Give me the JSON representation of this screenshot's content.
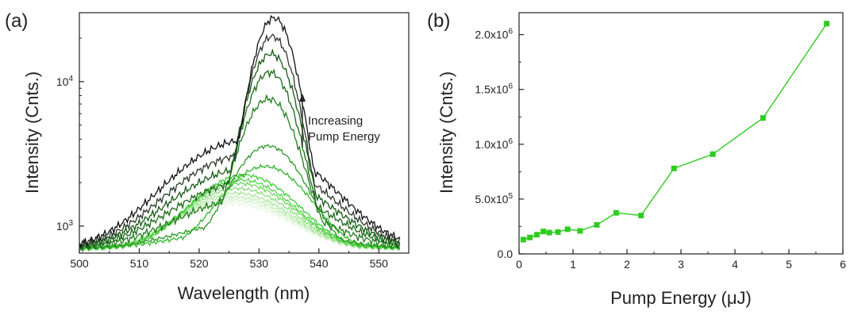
{
  "chart_data": [
    {
      "panel_label": "(a)",
      "type": "line",
      "xlabel": "Wavelength (nm)",
      "ylabel": "Intensity (Cnts.)",
      "xlim": [
        500,
        555
      ],
      "ylim": [
        650,
        30000
      ],
      "yscale": "log",
      "x_ticks": [
        500,
        510,
        520,
        530,
        540,
        550
      ],
      "y_ticks": [
        {
          "value": 1000,
          "label_base": "10",
          "label_exp": "3"
        },
        {
          "value": 10000,
          "label_base": "10",
          "label_exp": "4"
        }
      ],
      "annotation": {
        "line1": "Increasing",
        "line2": "Pump Energy"
      },
      "color_gradient": {
        "low": "#e8f7e3",
        "mid": "#39d12e",
        "high": "#101010"
      },
      "series": [
        {
          "peak": 840,
          "peak_x": 525.5,
          "width": 11,
          "color": "#e8f7e3"
        },
        {
          "peak": 920,
          "peak_x": 525.8,
          "width": 10.8,
          "color": "#d4f2cc"
        },
        {
          "peak": 1000,
          "peak_x": 526.0,
          "width": 10.6,
          "color": "#bfecb4"
        },
        {
          "peak": 1100,
          "peak_x": 526.2,
          "width": 10.4,
          "color": "#a6e69a"
        },
        {
          "peak": 1230,
          "peak_x": 526.5,
          "width": 10.2,
          "color": "#8ade7d"
        },
        {
          "peak": 1380,
          "peak_x": 526.8,
          "width": 10.0,
          "color": "#6fd861"
        },
        {
          "peak": 1500,
          "peak_x": 527.0,
          "width": 9.8,
          "color": "#55d249"
        },
        {
          "peak": 1660,
          "peak_x": 527.5,
          "width": 9.6,
          "color": "#3fca33"
        },
        {
          "peak": 2000,
          "peak_x": 531.0,
          "width": 8.0,
          "color": "#33b52a"
        },
        {
          "peak": 3000,
          "peak_x": 531.5,
          "width": 6.5,
          "color": "#2a9a24"
        },
        {
          "peak": 7000,
          "peak_x": 531.6,
          "width": 5.0,
          "color": "#217d1d"
        },
        {
          "peak": 11000,
          "peak_x": 531.8,
          "width": 4.5,
          "color": "#1b6a18"
        },
        {
          "peak": 15000,
          "peak_x": 532.0,
          "width": 4.3,
          "color": "#155a14"
        },
        {
          "peak": 20000,
          "peak_x": 532.2,
          "width": 4.0,
          "color": "#2b3a2b"
        },
        {
          "peak": 27000,
          "peak_x": 532.5,
          "width": 3.8,
          "color": "#111111"
        }
      ]
    },
    {
      "panel_label": "(b)",
      "type": "line",
      "xlabel": "Pump Energy (μJ)",
      "ylabel": "Intensity (Cnts.)",
      "xlim": [
        0,
        6
      ],
      "ylim": [
        0,
        2200000
      ],
      "x_ticks": [
        0,
        1,
        2,
        3,
        4,
        5,
        6
      ],
      "y_ticks": [
        {
          "value": 0,
          "label": "0.0"
        },
        {
          "value": 500000,
          "label_base": "5.0x10",
          "label_exp": "5"
        },
        {
          "value": 1000000,
          "label_base": "1.0x10",
          "label_exp": "6"
        },
        {
          "value": 1500000,
          "label_base": "1.5x10",
          "label_exp": "6"
        },
        {
          "value": 2000000,
          "label_base": "2.0x10",
          "label_exp": "6"
        }
      ],
      "color": "#2ecc1f",
      "series": [
        {
          "x": [
            0.08,
            0.2,
            0.33,
            0.45,
            0.56,
            0.72,
            0.9,
            1.13,
            1.44,
            1.8,
            2.26,
            2.87,
            3.59,
            4.52,
            5.7
          ],
          "y": [
            130000,
            150000,
            175000,
            205000,
            195000,
            200000,
            225000,
            210000,
            265000,
            375000,
            350000,
            780000,
            910000,
            1240000,
            2100000
          ]
        }
      ]
    }
  ]
}
